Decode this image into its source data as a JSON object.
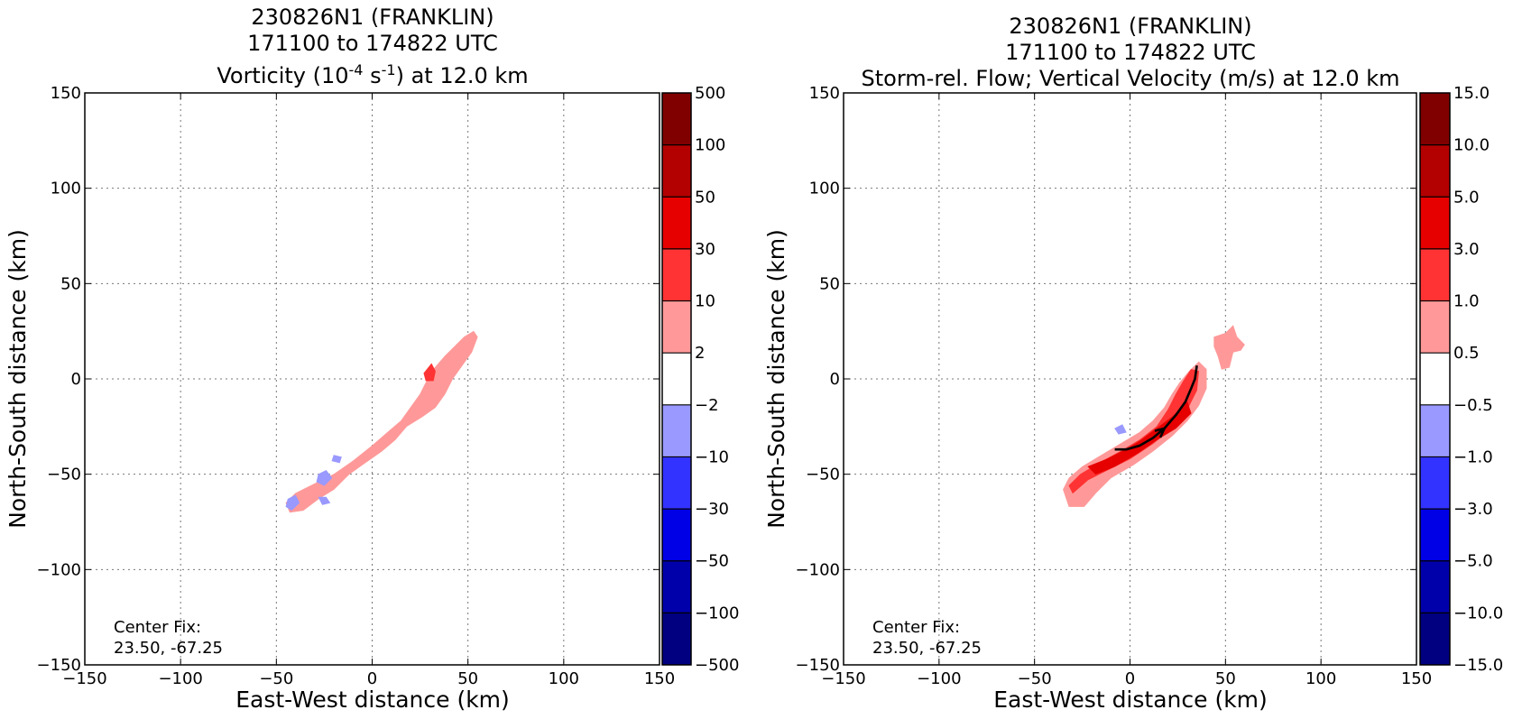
{
  "colors": {
    "levels": [
      "#000080",
      "#0000aa",
      "#0000e6",
      "#3333ff",
      "#9999ff",
      "#ffffff",
      "#ff9999",
      "#ff3333",
      "#e60000",
      "#b30000",
      "#800000"
    ]
  },
  "chart_data": [
    {
      "type": "heatmap",
      "title_lines": [
        "230826N1 (FRANKLIN)",
        "171100 to 174822 UTC"
      ],
      "title_line3": {
        "pre": "Vorticity (10",
        "sup1": "-4",
        "mid": " s",
        "sup2": "-1",
        "post": ") at 12.0 km"
      },
      "xlabel": "East-West distance (km)",
      "ylabel": "North-South distance (km)",
      "xlim": [
        -150,
        150
      ],
      "ylim": [
        -150,
        150
      ],
      "xticks": [
        -150,
        -100,
        -50,
        0,
        50,
        100,
        150
      ],
      "yticks": [
        -150,
        -100,
        -50,
        0,
        50,
        100,
        150
      ],
      "xtick_labels": [
        "−150",
        "−100",
        "−50",
        "0",
        "50",
        "100",
        "150"
      ],
      "ytick_labels": [
        "−150",
        "−100",
        "−50",
        "0",
        "50",
        "100",
        "150"
      ],
      "grid": true,
      "colorbar_labels": [
        "500",
        "100",
        "50",
        "30",
        "10",
        "2",
        "−2",
        "−10",
        "−30",
        "−50",
        "−100",
        "−500"
      ],
      "annotation": {
        "line1": "Center Fix:",
        "line2": "23.50, -67.25"
      },
      "regions": [
        {
          "level": 6,
          "polygon": [
            [
              -45,
              -65
            ],
            [
              -40,
              -60
            ],
            [
              -30,
              -55
            ],
            [
              -20,
              -50
            ],
            [
              -10,
              -43
            ],
            [
              0,
              -35
            ],
            [
              8,
              -28
            ],
            [
              15,
              -22
            ],
            [
              20,
              -15
            ],
            [
              25,
              -8
            ],
            [
              28,
              -2
            ],
            [
              32,
              5
            ],
            [
              38,
              12
            ],
            [
              43,
              17
            ],
            [
              48,
              22
            ],
            [
              53,
              25
            ],
            [
              55,
              22
            ],
            [
              52,
              14
            ],
            [
              47,
              7
            ],
            [
              42,
              0
            ],
            [
              38,
              -8
            ],
            [
              33,
              -15
            ],
            [
              26,
              -20
            ],
            [
              18,
              -25
            ],
            [
              12,
              -32
            ],
            [
              5,
              -38
            ],
            [
              -5,
              -45
            ],
            [
              -12,
              -50
            ],
            [
              -20,
              -58
            ],
            [
              -28,
              -63
            ],
            [
              -36,
              -69
            ],
            [
              -43,
              -70
            ]
          ]
        },
        {
          "level": 7,
          "polygon": [
            [
              27,
              3
            ],
            [
              31,
              8
            ],
            [
              33,
              4
            ],
            [
              32,
              -1
            ],
            [
              28,
              -1
            ]
          ]
        },
        {
          "level": 4,
          "polygon": [
            [
              -44,
              -63
            ],
            [
              -40,
              -61
            ],
            [
              -38,
              -65
            ],
            [
              -42,
              -69
            ],
            [
              -45,
              -67
            ]
          ]
        },
        {
          "level": 4,
          "polygon": [
            [
              -28,
              -50
            ],
            [
              -24,
              -48
            ],
            [
              -21,
              -52
            ],
            [
              -25,
              -56
            ],
            [
              -29,
              -54
            ]
          ]
        },
        {
          "level": 4,
          "polygon": [
            [
              -20,
              -40
            ],
            [
              -16,
              -41
            ],
            [
              -17,
              -44
            ],
            [
              -21,
              -43
            ]
          ]
        },
        {
          "level": 4,
          "polygon": [
            [
              -28,
              -62
            ],
            [
              -24,
              -62
            ],
            [
              -22,
              -65
            ],
            [
              -26,
              -66
            ]
          ]
        }
      ]
    },
    {
      "type": "heatmap",
      "title_lines": [
        "230826N1 (FRANKLIN)",
        "171100 to 174822 UTC",
        "Storm-rel. Flow; Vertical Velocity (m/s) at 12.0 km"
      ],
      "xlabel": "East-West distance (km)",
      "ylabel": "North-South distance (km)",
      "xlim": [
        -150,
        150
      ],
      "ylim": [
        -150,
        150
      ],
      "xticks": [
        -150,
        -100,
        -50,
        0,
        50,
        100,
        150
      ],
      "yticks": [
        -150,
        -100,
        -50,
        0,
        50,
        100,
        150
      ],
      "xtick_labels": [
        "−150",
        "−100",
        "−50",
        "0",
        "50",
        "100",
        "150"
      ],
      "ytick_labels": [
        "−150",
        "−100",
        "−50",
        "0",
        "50",
        "100",
        "150"
      ],
      "grid": true,
      "colorbar_labels": [
        "15.0",
        "10.0",
        "5.0",
        "3.0",
        "1.0",
        "0.5",
        "−0.5",
        "−1.0",
        "−3.0",
        "−5.0",
        "−10.0",
        "−15.0"
      ],
      "annotation": {
        "line1": "Center Fix:",
        "line2": "23.50, -67.25"
      },
      "regions": [
        {
          "level": 6,
          "polygon": [
            [
              -35,
              -58
            ],
            [
              -32,
              -52
            ],
            [
              -25,
              -46
            ],
            [
              -15,
              -40
            ],
            [
              -5,
              -34
            ],
            [
              5,
              -28
            ],
            [
              12,
              -22
            ],
            [
              18,
              -15
            ],
            [
              22,
              -8
            ],
            [
              26,
              -2
            ],
            [
              31,
              4
            ],
            [
              36,
              9
            ],
            [
              40,
              5
            ],
            [
              40,
              -5
            ],
            [
              36,
              -14
            ],
            [
              30,
              -22
            ],
            [
              22,
              -30
            ],
            [
              12,
              -38
            ],
            [
              2,
              -45
            ],
            [
              -10,
              -52
            ],
            [
              -18,
              -60
            ],
            [
              -24,
              -67
            ],
            [
              -32,
              -67
            ]
          ]
        },
        {
          "level": 7,
          "polygon": [
            [
              -32,
              -56
            ],
            [
              -26,
              -50
            ],
            [
              -16,
              -44
            ],
            [
              -5,
              -38
            ],
            [
              5,
              -32
            ],
            [
              14,
              -25
            ],
            [
              20,
              -16
            ],
            [
              24,
              -8
            ],
            [
              28,
              -1
            ],
            [
              32,
              5
            ],
            [
              36,
              4
            ],
            [
              35,
              -6
            ],
            [
              30,
              -16
            ],
            [
              22,
              -26
            ],
            [
              12,
              -34
            ],
            [
              0,
              -42
            ],
            [
              -12,
              -48
            ],
            [
              -22,
              -53
            ],
            [
              -30,
              -60
            ]
          ]
        },
        {
          "level": 8,
          "polygon": [
            [
              -22,
              -46
            ],
            [
              -12,
              -42
            ],
            [
              -2,
              -37
            ],
            [
              6,
              -32
            ],
            [
              14,
              -26
            ],
            [
              22,
              -20
            ],
            [
              30,
              -12
            ],
            [
              32,
              -18
            ],
            [
              24,
              -26
            ],
            [
              14,
              -32
            ],
            [
              4,
              -39
            ],
            [
              -8,
              -46
            ],
            [
              -18,
              -50
            ]
          ]
        },
        {
          "level": 6,
          "polygon": [
            [
              44,
              22
            ],
            [
              50,
              24
            ],
            [
              54,
              28
            ],
            [
              56,
              22
            ],
            [
              60,
              18
            ],
            [
              58,
              15
            ],
            [
              54,
              14
            ],
            [
              52,
              6
            ],
            [
              48,
              5
            ],
            [
              46,
              12
            ],
            [
              44,
              17
            ]
          ]
        },
        {
          "level": 4,
          "polygon": [
            [
              -8,
              -26
            ],
            [
              -4,
              -24
            ],
            [
              -2,
              -28
            ],
            [
              -6,
              -29
            ]
          ]
        }
      ],
      "streamline": [
        [
          -8,
          -37
        ],
        [
          -2,
          -37
        ],
        [
          5,
          -35
        ],
        [
          12,
          -31
        ],
        [
          18,
          -26
        ],
        [
          24,
          -19
        ],
        [
          29,
          -12
        ],
        [
          32,
          -5
        ],
        [
          34,
          0
        ],
        [
          35,
          7
        ]
      ]
    }
  ]
}
